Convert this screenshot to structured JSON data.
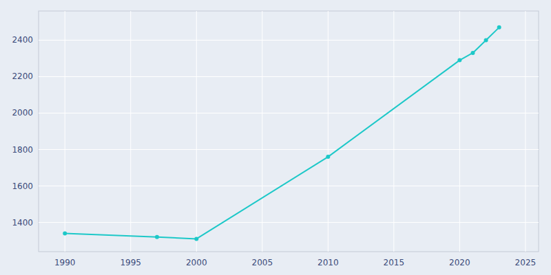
{
  "chart_data": {
    "type": "line",
    "x": [
      1990,
      1997,
      2000,
      2010,
      2020,
      2021,
      2022,
      2023
    ],
    "values": [
      1340,
      1320,
      1310,
      1760,
      2290,
      2330,
      2400,
      2470
    ],
    "color": "#1DC8C8",
    "marker": "circle",
    "xlim": [
      1988,
      2026
    ],
    "ylim": [
      1240,
      2560
    ],
    "xticks": [
      1990,
      1995,
      2000,
      2005,
      2010,
      2015,
      2020,
      2025
    ],
    "yticks": [
      1400,
      1600,
      1800,
      2000,
      2200,
      2400
    ],
    "grid": true
  }
}
